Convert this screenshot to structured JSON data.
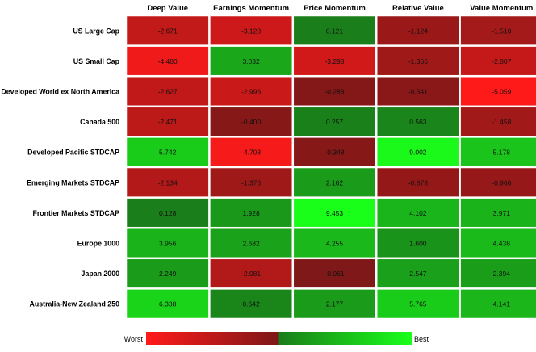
{
  "chart_data": {
    "type": "heatmap",
    "columns": [
      "Deep Value",
      "Earnings Momentum",
      "Price Momentum",
      "Relative Value",
      "Value Momentum"
    ],
    "rows": [
      "US Large Cap",
      "US Small Cap",
      "Developed World ex North America",
      "Canada 500",
      "Developed Pacific STDCAP",
      "Emerging Markets STDCAP",
      "Frontier Markets STDCAP",
      "Europe 1000",
      "Japan 2000",
      "Australia-New Zealand 250"
    ],
    "values": [
      [
        -2.671,
        -3.128,
        0.121,
        -1.124,
        -1.51
      ],
      [
        -4.48,
        3.032,
        -3.298,
        -1.366,
        -2.807
      ],
      [
        -2.627,
        -2.996,
        -0.283,
        -0.541,
        -5.059
      ],
      [
        -2.471,
        -0.4,
        0.257,
        0.563,
        -1.458
      ],
      [
        5.742,
        -4.703,
        -0.348,
        9.002,
        5.178
      ],
      [
        -2.134,
        -1.376,
        2.162,
        -0.878,
        -0.966
      ],
      [
        0.128,
        1.928,
        9.453,
        4.102,
        3.971
      ],
      [
        3.956,
        2.682,
        4.255,
        1.6,
        4.438
      ],
      [
        2.249,
        -2.081,
        -0.061,
        2.547,
        2.394
      ],
      [
        6.338,
        0.642,
        2.177,
        5.765,
        4.141
      ]
    ],
    "value_labels": [
      [
        "-2.671",
        "-3.128",
        "0.121",
        "-1.124",
        "-1.510"
      ],
      [
        "-4.480",
        "3.032",
        "-3.298",
        "-1.366",
        "-2.807"
      ],
      [
        "-2.627",
        "-2.996",
        "-0.283",
        "-0.541",
        "-5.059"
      ],
      [
        "-2.471",
        "-0.400",
        "0.257",
        "0.563",
        "-1.458"
      ],
      [
        "5.742",
        "-4.703",
        "-0.348",
        "9.002",
        "5.178"
      ],
      [
        "-2.134",
        "-1.376",
        "2.162",
        "-0.878",
        "-0.966"
      ],
      [
        "0.128",
        "1.928",
        "9.453",
        "4.102",
        "3.971"
      ],
      [
        "3.956",
        "2.682",
        "4.255",
        "1.600",
        "4.438"
      ],
      [
        "2.249",
        "-2.081",
        "-0.061",
        "2.547",
        "2.394"
      ],
      [
        "6.338",
        "0.642",
        "2.177",
        "5.765",
        "4.141"
      ]
    ],
    "color_scale": {
      "worst_label": "Worst",
      "best_label": "Best",
      "colors": [
        "#ff1a1a",
        "#7d1818",
        "#1a7d1a",
        "#1aff1a"
      ]
    }
  }
}
